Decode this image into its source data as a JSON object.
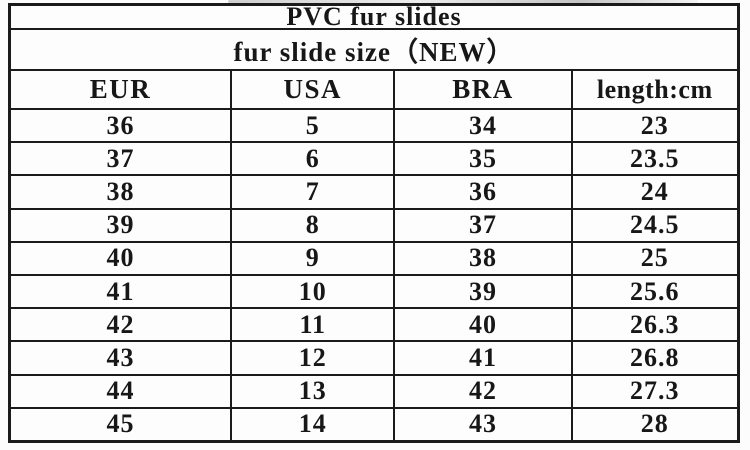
{
  "title": "PVC fur slides",
  "subtitle": "fur slide size（NEW）",
  "table": {
    "headers": [
      "EUR",
      "USA",
      "BRA",
      "length:cm"
    ],
    "rows": [
      [
        "36",
        "5",
        "34",
        "23"
      ],
      [
        "37",
        "6",
        "35",
        "23.5"
      ],
      [
        "38",
        "7",
        "36",
        "24"
      ],
      [
        "39",
        "8",
        "37",
        "24.5"
      ],
      [
        "40",
        "9",
        "38",
        "25"
      ],
      [
        "41",
        "10",
        "39",
        "25.6"
      ],
      [
        "42",
        "11",
        "40",
        "26.3"
      ],
      [
        "43",
        "12",
        "41",
        "26.8"
      ],
      [
        "44",
        "13",
        "42",
        "27.3"
      ],
      [
        "45",
        "14",
        "43",
        "28"
      ]
    ]
  },
  "chart_data": {
    "type": "table",
    "title": "PVC fur slides",
    "subtitle": "fur slide size（NEW）",
    "columns": [
      "EUR",
      "USA",
      "BRA",
      "length:cm"
    ],
    "rows": [
      [
        36,
        5,
        34,
        23
      ],
      [
        37,
        6,
        35,
        23.5
      ],
      [
        38,
        7,
        36,
        24
      ],
      [
        39,
        8,
        37,
        24.5
      ],
      [
        40,
        9,
        38,
        25
      ],
      [
        41,
        10,
        39,
        25.6
      ],
      [
        42,
        11,
        40,
        26.3
      ],
      [
        43,
        12,
        41,
        26.8
      ],
      [
        44,
        13,
        42,
        27.3
      ],
      [
        45,
        14,
        43,
        28
      ]
    ],
    "layout": {
      "grid": true,
      "legend": "none",
      "header_rows": 3
    }
  },
  "colors": {
    "border": "#1b1b1b",
    "background": "#fcfcfc",
    "cell_background": "#fdfdfd",
    "text": "#171717"
  }
}
